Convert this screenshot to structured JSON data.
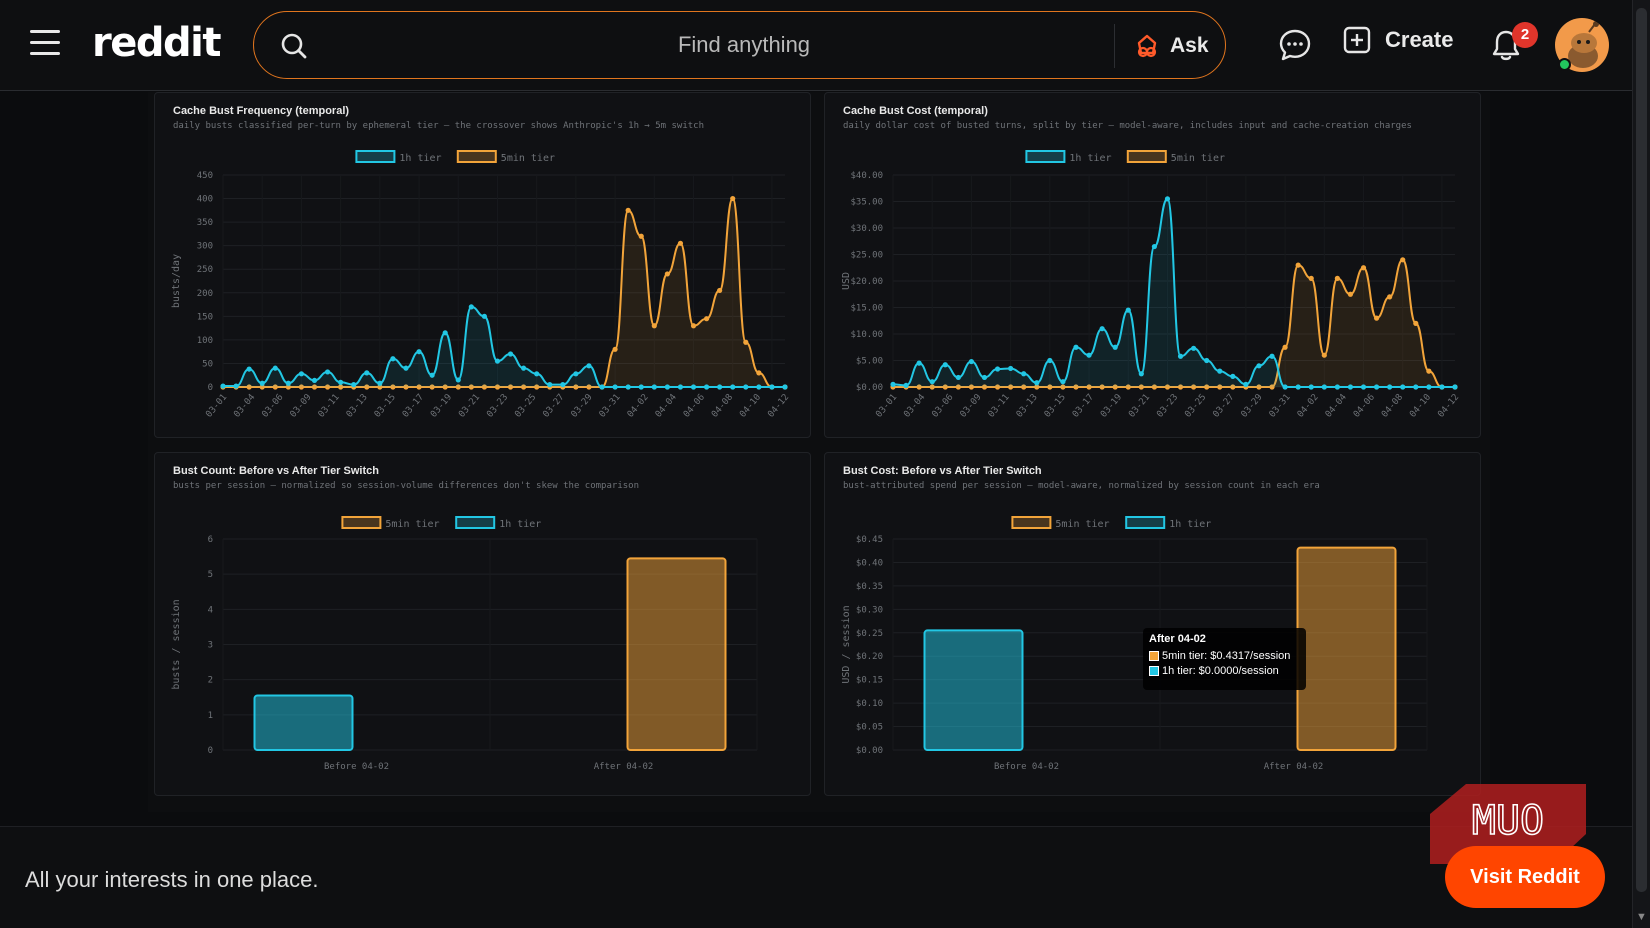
{
  "header": {
    "logo": "reddit",
    "search_placeholder": "Find anything",
    "ask_label": "Ask",
    "create_label": "Create",
    "notification_count": "2"
  },
  "panels": {
    "freq": {
      "title": "Cache Bust Frequency (temporal)",
      "subtitle": "daily busts classified per-turn by ephemeral tier — the crossover shows Anthropic's 1h → 5m switch"
    },
    "cost": {
      "title": "Cache Bust Cost (temporal)",
      "subtitle": "daily dollar cost of busted turns, split by tier — model-aware, includes input and cache-creation charges"
    },
    "count": {
      "title": "Bust Count: Before vs After Tier Switch",
      "subtitle": "busts per session — normalized so session-volume differences don't skew the comparison"
    },
    "spend": {
      "title": "Bust Cost: Before vs After Tier Switch",
      "subtitle": "bust-attributed spend per session — model-aware, normalized by session count in each era"
    }
  },
  "tooltip": {
    "title": "After 04-02",
    "line1": "5min tier: $0.4317/session",
    "line2": "1h tier: $0.0000/session"
  },
  "colors": {
    "teal": "#22c7e4",
    "orange": "#f2a43a",
    "accent": "#ff4500"
  },
  "chart_data": [
    {
      "type": "line",
      "title": "Cache Bust Frequency (temporal)",
      "ylabel": "busts/day",
      "ylim": [
        0,
        450
      ],
      "yticks": [
        "0",
        "50",
        "100",
        "150",
        "200",
        "250",
        "300",
        "350",
        "400",
        "450"
      ],
      "x": [
        "03-01",
        "03-02",
        "03-03",
        "03-04",
        "03-05",
        "03-06",
        "03-07",
        "03-08",
        "03-09",
        "03-10",
        "03-11",
        "03-12",
        "03-13",
        "03-14",
        "03-15",
        "03-16",
        "03-17",
        "03-18",
        "03-19",
        "03-20",
        "03-21",
        "03-22",
        "03-23",
        "03-24",
        "03-25",
        "03-26",
        "03-27",
        "03-28",
        "03-29",
        "03-30",
        "03-31",
        "04-01",
        "04-02",
        "04-03",
        "04-04",
        "04-05",
        "04-06",
        "04-07",
        "04-08",
        "04-09",
        "04-10",
        "04-11",
        "04-12",
        "04-13"
      ],
      "xticks": [
        "03-01",
        "03-04",
        "03-06",
        "03-09",
        "03-11",
        "03-13",
        "03-15",
        "03-17",
        "03-19",
        "03-21",
        "03-23",
        "03-25",
        "03-27",
        "03-29",
        "03-31",
        "04-02",
        "04-04",
        "04-06",
        "04-08",
        "04-10",
        "04-12"
      ],
      "legend": [
        "1h tier",
        "5min tier"
      ],
      "series": [
        {
          "name": "1h tier",
          "values": [
            2,
            2,
            38,
            8,
            40,
            8,
            28,
            14,
            32,
            10,
            5,
            30,
            8,
            60,
            40,
            75,
            25,
            115,
            15,
            170,
            150,
            55,
            70,
            40,
            28,
            5,
            5,
            28,
            45,
            0,
            0,
            0,
            0,
            0,
            0,
            0,
            0,
            0,
            0,
            0,
            0,
            0,
            0,
            0
          ]
        },
        {
          "name": "5min tier",
          "values": [
            0,
            0,
            0,
            0,
            0,
            0,
            0,
            0,
            0,
            0,
            0,
            0,
            0,
            0,
            0,
            0,
            0,
            0,
            0,
            0,
            0,
            0,
            0,
            0,
            0,
            0,
            0,
            0,
            0,
            0,
            80,
            375,
            320,
            130,
            240,
            305,
            130,
            145,
            205,
            400,
            95,
            30,
            0,
            0
          ]
        }
      ]
    },
    {
      "type": "line",
      "title": "Cache Bust Cost (temporal)",
      "ylabel": "USD",
      "ylim": [
        0,
        40
      ],
      "yticks": [
        "$0.00",
        "$5.00",
        "$10.00",
        "$15.00",
        "$20.00",
        "$25.00",
        "$30.00",
        "$35.00",
        "$40.00"
      ],
      "legend": [
        "1h tier",
        "5min tier"
      ],
      "series": [
        {
          "name": "1h tier",
          "values": [
            0.5,
            0.3,
            4.5,
            1.0,
            4.2,
            1.8,
            4.8,
            1.8,
            3.4,
            3.5,
            2.5,
            0.8,
            5.0,
            1.0,
            7.5,
            6.0,
            11.0,
            7.5,
            14.5,
            2.5,
            26.5,
            35.5,
            5.8,
            7.3,
            5.0,
            3.0,
            2.0,
            0.5,
            4.0,
            5.8,
            0,
            0,
            0,
            0,
            0,
            0,
            0,
            0,
            0,
            0,
            0,
            0,
            0,
            0
          ]
        },
        {
          "name": "5min tier",
          "values": [
            0,
            0,
            0,
            0,
            0,
            0,
            0,
            0,
            0,
            0,
            0,
            0,
            0,
            0,
            0,
            0,
            0,
            0,
            0,
            0,
            0,
            0,
            0,
            0,
            0,
            0,
            0,
            0,
            0,
            0,
            7.5,
            23,
            20.5,
            6.0,
            20.5,
            17.5,
            22.5,
            13,
            17,
            24,
            12,
            3.0,
            0,
            0
          ]
        }
      ]
    },
    {
      "type": "bar",
      "title": "Bust Count: Before vs After Tier Switch",
      "ylabel": "busts / session",
      "categories": [
        "Before 04-02",
        "After 04-02"
      ],
      "ylim": [
        0,
        6
      ],
      "yticks": [
        "0",
        "1",
        "2",
        "3",
        "4",
        "5",
        "6"
      ],
      "legend": [
        "5min tier",
        "1h tier"
      ],
      "series": [
        {
          "name": "5min tier",
          "values": [
            0,
            5.45
          ]
        },
        {
          "name": "1h tier",
          "values": [
            1.55,
            0
          ]
        }
      ]
    },
    {
      "type": "bar",
      "title": "Bust Cost: Before vs After Tier Switch",
      "ylabel": "USD / session",
      "categories": [
        "Before 04-02",
        "After 04-02"
      ],
      "ylim": [
        0,
        0.45
      ],
      "yticks": [
        "$0.00",
        "$0.05",
        "$0.10",
        "$0.15",
        "$0.20",
        "$0.25",
        "$0.30",
        "$0.35",
        "$0.40",
        "$0.45"
      ],
      "legend": [
        "5min tier",
        "1h tier"
      ],
      "series": [
        {
          "name": "5min tier",
          "values": [
            0,
            0.4317
          ]
        },
        {
          "name": "1h tier",
          "values": [
            0.255,
            0
          ]
        }
      ]
    }
  ],
  "footer": {
    "tagline": "All your interests in one place.",
    "visit_label": "Visit Reddit",
    "watermark": "MUO"
  }
}
